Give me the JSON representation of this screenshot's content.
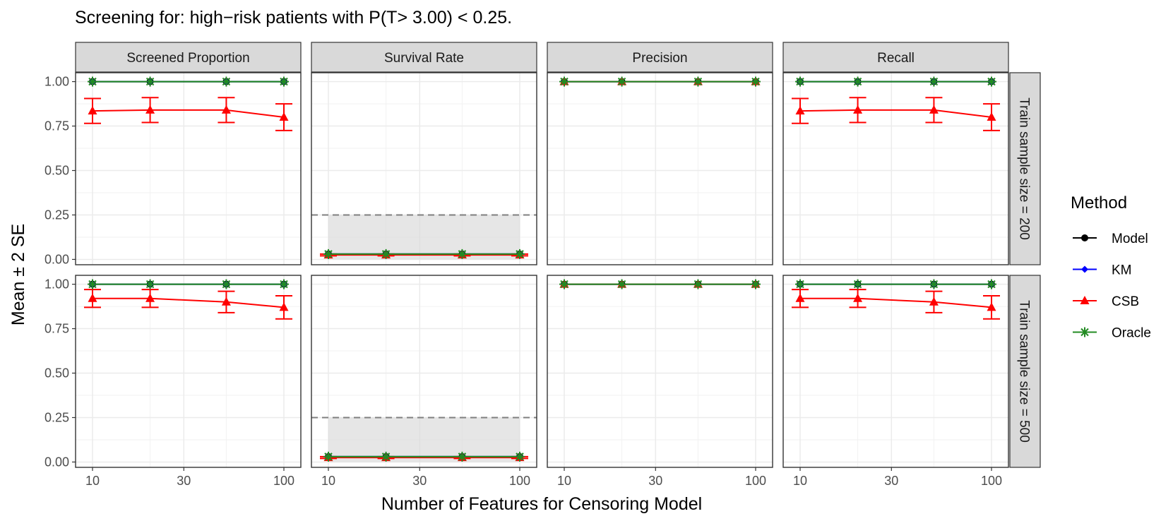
{
  "chart_data": {
    "type": "line",
    "title": "Screening for: high−risk patients with P(T> 3.00) < 0.25.",
    "xlabel": "Number of Features for Censoring Model",
    "ylabel": "Mean ± 2 SE",
    "x_scale": "log10",
    "x_values": [
      10,
      20,
      50,
      100
    ],
    "x_ticks": [
      10,
      30,
      100
    ],
    "x_tick_labels": [
      "10",
      "30",
      "100"
    ],
    "ylim": [
      -0.03,
      1.05
    ],
    "y_ticks": [
      0,
      0.25,
      0.5,
      0.75,
      1.0
    ],
    "y_tick_labels": [
      "0.00",
      "0.25",
      "0.50",
      "0.75",
      "1.00"
    ],
    "grid": true,
    "columns": [
      "Screened Proportion",
      "Survival Rate",
      "Precision",
      "Recall"
    ],
    "rows": [
      "Train sample size = 200",
      "Train sample size = 500"
    ],
    "legend": {
      "title": "Method",
      "position": "right",
      "entries": [
        {
          "name": "Model",
          "color": "#000000",
          "shape": "circle"
        },
        {
          "name": "KM",
          "color": "#0000ff",
          "shape": "diamond"
        },
        {
          "name": "CSB",
          "color": "#ff0000",
          "shape": "triangle"
        },
        {
          "name": "Oracle",
          "color": "#228b22",
          "shape": "asterisk"
        }
      ]
    },
    "reference": {
      "column": "Survival Rate",
      "y": 0.25,
      "style": "dashed",
      "shaded_band": [
        0,
        0.25
      ]
    },
    "panels": [
      {
        "row": 0,
        "col": 0,
        "series": [
          {
            "method": "Model",
            "y": [
              1.0,
              1.0,
              1.0,
              1.0
            ],
            "se2": [
              0,
              0,
              0,
              0
            ]
          },
          {
            "method": "KM",
            "y": [
              1.0,
              1.0,
              1.0,
              1.0
            ],
            "se2": [
              0,
              0,
              0,
              0
            ]
          },
          {
            "method": "CSB",
            "y": [
              0.835,
              0.84,
              0.84,
              0.8
            ],
            "se2": [
              0.07,
              0.07,
              0.07,
              0.075
            ]
          },
          {
            "method": "Oracle",
            "y": [
              1.0,
              1.0,
              1.0,
              1.0
            ],
            "se2": [
              0,
              0,
              0,
              0
            ]
          }
        ]
      },
      {
        "row": 0,
        "col": 1,
        "series": [
          {
            "method": "Model",
            "y": [
              0.03,
              0.03,
              0.03,
              0.03
            ],
            "se2": [
              0,
              0,
              0,
              0
            ]
          },
          {
            "method": "KM",
            "y": [
              0.03,
              0.03,
              0.03,
              0.03
            ],
            "se2": [
              0,
              0,
              0,
              0
            ]
          },
          {
            "method": "CSB",
            "y": [
              0.025,
              0.025,
              0.025,
              0.025
            ],
            "se2": [
              0.005,
              0.005,
              0.005,
              0.005
            ]
          },
          {
            "method": "Oracle",
            "y": [
              0.03,
              0.03,
              0.03,
              0.03
            ],
            "se2": [
              0,
              0,
              0,
              0
            ]
          }
        ]
      },
      {
        "row": 0,
        "col": 2,
        "series": [
          {
            "method": "Model",
            "y": [
              1.0,
              1.0,
              1.0,
              1.0
            ],
            "se2": [
              0,
              0,
              0,
              0
            ]
          },
          {
            "method": "KM",
            "y": [
              1.0,
              1.0,
              1.0,
              1.0
            ],
            "se2": [
              0,
              0,
              0,
              0
            ]
          },
          {
            "method": "CSB",
            "y": [
              1.0,
              1.0,
              1.0,
              1.0
            ],
            "se2": [
              0,
              0,
              0,
              0
            ]
          },
          {
            "method": "Oracle",
            "y": [
              1.0,
              1.0,
              1.0,
              1.0
            ],
            "se2": [
              0,
              0,
              0,
              0
            ]
          }
        ]
      },
      {
        "row": 0,
        "col": 3,
        "series": [
          {
            "method": "Model",
            "y": [
              1.0,
              1.0,
              1.0,
              1.0
            ],
            "se2": [
              0,
              0,
              0,
              0
            ]
          },
          {
            "method": "KM",
            "y": [
              1.0,
              1.0,
              1.0,
              1.0
            ],
            "se2": [
              0,
              0,
              0,
              0
            ]
          },
          {
            "method": "CSB",
            "y": [
              0.835,
              0.84,
              0.84,
              0.8
            ],
            "se2": [
              0.07,
              0.07,
              0.07,
              0.075
            ]
          },
          {
            "method": "Oracle",
            "y": [
              1.0,
              1.0,
              1.0,
              1.0
            ],
            "se2": [
              0,
              0,
              0,
              0
            ]
          }
        ]
      },
      {
        "row": 1,
        "col": 0,
        "series": [
          {
            "method": "Model",
            "y": [
              1.0,
              1.0,
              1.0,
              1.0
            ],
            "se2": [
              0,
              0,
              0,
              0
            ]
          },
          {
            "method": "KM",
            "y": [
              1.0,
              1.0,
              1.0,
              1.0
            ],
            "se2": [
              0,
              0,
              0,
              0
            ]
          },
          {
            "method": "CSB",
            "y": [
              0.92,
              0.92,
              0.9,
              0.87
            ],
            "se2": [
              0.05,
              0.05,
              0.06,
              0.065
            ]
          },
          {
            "method": "Oracle",
            "y": [
              1.0,
              1.0,
              1.0,
              1.0
            ],
            "se2": [
              0,
              0,
              0,
              0
            ]
          }
        ]
      },
      {
        "row": 1,
        "col": 1,
        "series": [
          {
            "method": "Model",
            "y": [
              0.03,
              0.03,
              0.03,
              0.03
            ],
            "se2": [
              0,
              0,
              0,
              0
            ]
          },
          {
            "method": "KM",
            "y": [
              0.03,
              0.03,
              0.03,
              0.03
            ],
            "se2": [
              0,
              0,
              0,
              0
            ]
          },
          {
            "method": "CSB",
            "y": [
              0.025,
              0.025,
              0.025,
              0.025
            ],
            "se2": [
              0.005,
              0.005,
              0.005,
              0.005
            ]
          },
          {
            "method": "Oracle",
            "y": [
              0.03,
              0.03,
              0.03,
              0.03
            ],
            "se2": [
              0,
              0,
              0,
              0
            ]
          }
        ]
      },
      {
        "row": 1,
        "col": 2,
        "series": [
          {
            "method": "Model",
            "y": [
              1.0,
              1.0,
              1.0,
              1.0
            ],
            "se2": [
              0,
              0,
              0,
              0
            ]
          },
          {
            "method": "KM",
            "y": [
              1.0,
              1.0,
              1.0,
              1.0
            ],
            "se2": [
              0,
              0,
              0,
              0
            ]
          },
          {
            "method": "CSB",
            "y": [
              1.0,
              1.0,
              1.0,
              1.0
            ],
            "se2": [
              0,
              0,
              0,
              0
            ]
          },
          {
            "method": "Oracle",
            "y": [
              1.0,
              1.0,
              1.0,
              1.0
            ],
            "se2": [
              0,
              0,
              0,
              0
            ]
          }
        ]
      },
      {
        "row": 1,
        "col": 3,
        "series": [
          {
            "method": "Model",
            "y": [
              1.0,
              1.0,
              1.0,
              1.0
            ],
            "se2": [
              0,
              0,
              0,
              0
            ]
          },
          {
            "method": "KM",
            "y": [
              1.0,
              1.0,
              1.0,
              1.0
            ],
            "se2": [
              0,
              0,
              0,
              0
            ]
          },
          {
            "method": "CSB",
            "y": [
              0.92,
              0.92,
              0.9,
              0.87
            ],
            "se2": [
              0.05,
              0.05,
              0.06,
              0.065
            ]
          },
          {
            "method": "Oracle",
            "y": [
              1.0,
              1.0,
              1.0,
              1.0
            ],
            "se2": [
              0,
              0,
              0,
              0
            ]
          }
        ]
      }
    ]
  }
}
